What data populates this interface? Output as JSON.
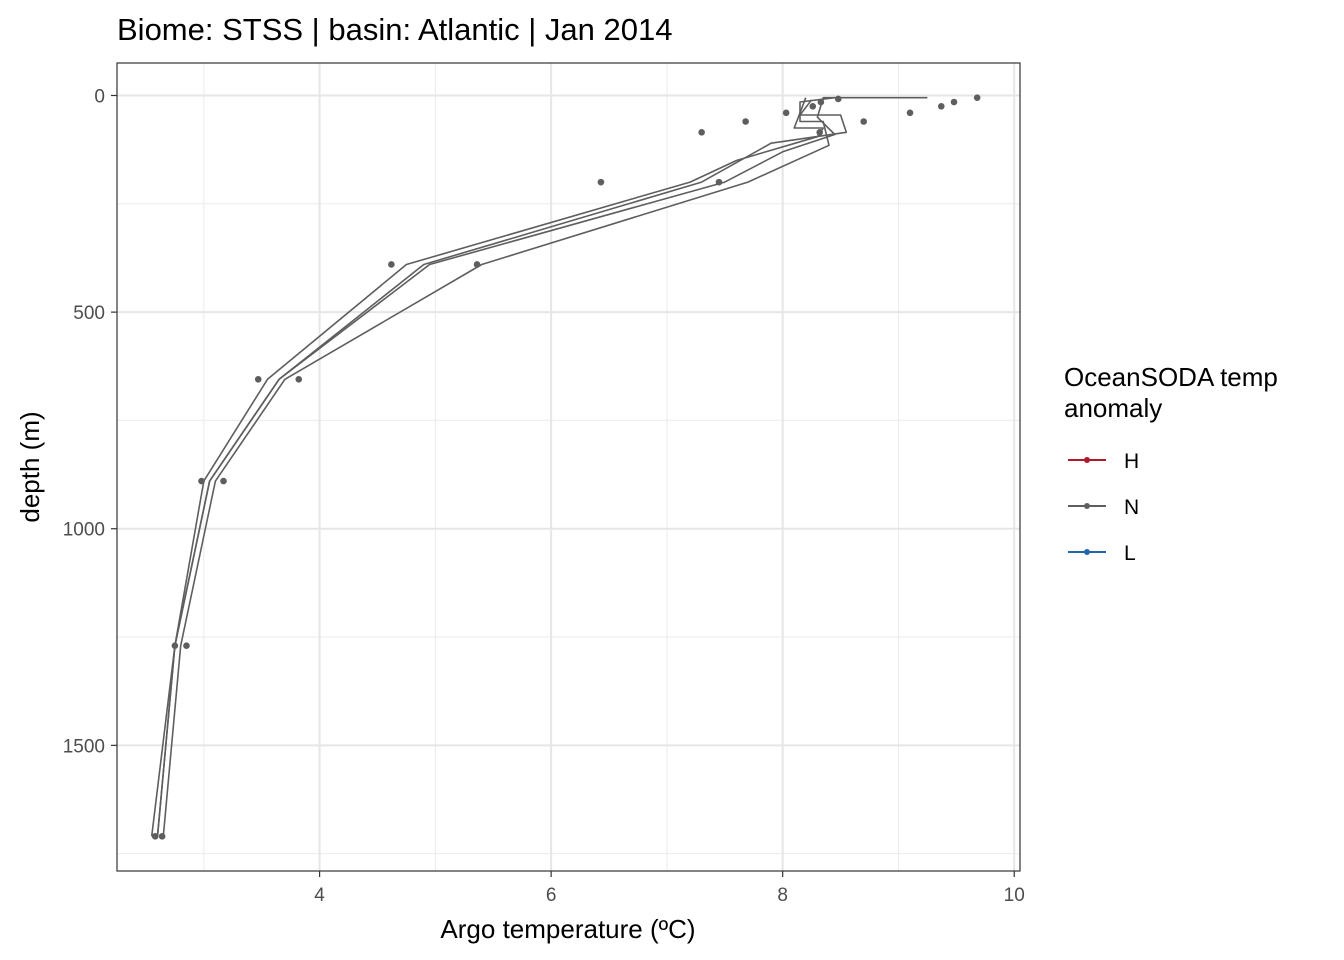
{
  "chart_data": {
    "type": "line",
    "title": "Biome: STSS | basin: Atlantic  | Jan 2014",
    "xlabel": "Argo temperature (ºC)",
    "ylabel": "depth (m)",
    "xlim": [
      2.25,
      10.05
    ],
    "ylim": [
      1790,
      -75
    ],
    "y_reversed": true,
    "x_ticks": [
      4,
      6,
      8,
      10
    ],
    "y_ticks": [
      0,
      500,
      1000,
      1500
    ],
    "grid": true,
    "legend": {
      "title_lines": [
        "OceanSODA temp",
        "anomaly"
      ],
      "position": "right",
      "entries": [
        {
          "label": "H",
          "color": "#b2182b"
        },
        {
          "label": "N",
          "color": "#5e5e5e"
        },
        {
          "label": "L",
          "color": "#2166ac"
        }
      ]
    },
    "series": [
      {
        "anomaly": "N",
        "points": [
          [
            9.25,
            5
          ],
          [
            8.35,
            5
          ],
          [
            8.3,
            50
          ],
          [
            8.45,
            90
          ],
          [
            8.0,
            130
          ],
          [
            7.5,
            200
          ],
          [
            4.95,
            390
          ],
          [
            3.65,
            655
          ],
          [
            3.05,
            890
          ],
          [
            2.75,
            1270
          ],
          [
            2.6,
            1710
          ]
        ]
      },
      {
        "anomaly": "N",
        "points": [
          [
            8.2,
            5
          ],
          [
            8.1,
            75
          ],
          [
            8.35,
            75
          ],
          [
            8.3,
            95
          ],
          [
            7.6,
            150
          ],
          [
            7.2,
            200
          ],
          [
            4.75,
            390
          ],
          [
            3.55,
            655
          ],
          [
            3.0,
            890
          ],
          [
            2.75,
            1270
          ],
          [
            2.55,
            1710
          ]
        ]
      },
      {
        "anomaly": "N",
        "points": [
          [
            8.25,
            10
          ],
          [
            8.15,
            45
          ],
          [
            8.5,
            45
          ],
          [
            8.55,
            85
          ],
          [
            7.9,
            110
          ],
          [
            7.3,
            200
          ],
          [
            4.9,
            390
          ],
          [
            3.65,
            655
          ],
          [
            3.05,
            890
          ],
          [
            2.75,
            1270
          ],
          [
            2.6,
            1710
          ]
        ]
      },
      {
        "anomaly": "N",
        "points": [
          [
            8.45,
            5
          ],
          [
            8.15,
            15
          ],
          [
            8.15,
            60
          ],
          [
            8.35,
            60
          ],
          [
            8.4,
            115
          ],
          [
            7.7,
            200
          ],
          [
            5.4,
            390
          ],
          [
            3.7,
            655
          ],
          [
            3.1,
            890
          ],
          [
            2.8,
            1270
          ],
          [
            2.65,
            1710
          ]
        ]
      }
    ],
    "points": [
      [
        9.68,
        5
      ],
      [
        9.48,
        15
      ],
      [
        9.37,
        25
      ],
      [
        9.1,
        40
      ],
      [
        8.7,
        60
      ],
      [
        8.48,
        8
      ],
      [
        8.33,
        15
      ],
      [
        8.26,
        25
      ],
      [
        8.03,
        40
      ],
      [
        8.32,
        85
      ],
      [
        7.68,
        60
      ],
      [
        7.3,
        85
      ],
      [
        6.43,
        200
      ],
      [
        7.45,
        200
      ],
      [
        4.62,
        390
      ],
      [
        5.36,
        390
      ],
      [
        3.47,
        655
      ],
      [
        3.82,
        655
      ],
      [
        2.98,
        890
      ],
      [
        3.17,
        890
      ],
      [
        2.75,
        1270
      ],
      [
        2.85,
        1270
      ],
      [
        2.58,
        1710
      ],
      [
        2.64,
        1710
      ]
    ]
  }
}
